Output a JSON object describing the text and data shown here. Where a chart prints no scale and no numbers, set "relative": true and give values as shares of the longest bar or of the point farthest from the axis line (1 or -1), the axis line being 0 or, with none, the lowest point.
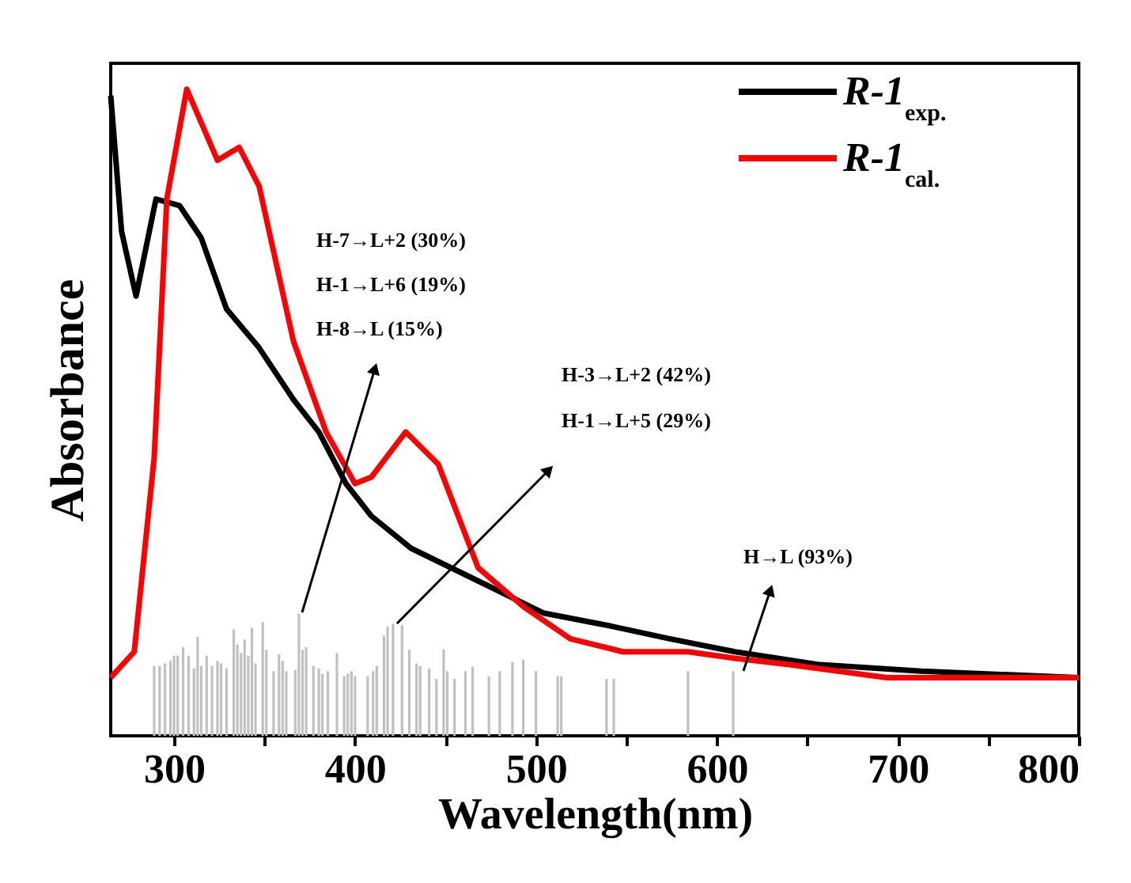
{
  "chart_data": {
    "type": "line",
    "relative": true,
    "xlabel": "Wavelength(nm)",
    "ylabel": "Absorbance",
    "xlim": [
      265,
      800
    ],
    "xticks": [
      300,
      {
        "value": 350,
        "label": null
      },
      400,
      {
        "value": 450,
        "label": null
      },
      500,
      {
        "value": 550,
        "label": null
      },
      600,
      {
        "value": 650,
        "label": null
      },
      700,
      {
        "value": 750,
        "label": null
      },
      800
    ],
    "tick_labels": "x",
    "grid": false,
    "legend": "top right",
    "marker": "none",
    "line_style": "solid",
    "series": [
      {
        "name": "R-1$_{exp.}$",
        "color": "#000000",
        "x": [
          265,
          271,
          279,
          290,
          303,
          315,
          329,
          347,
          366,
          380,
          395,
          409,
          431,
          453,
          475,
          504,
          541,
          574,
          610,
          657,
          713,
          800
        ],
        "values": [
          0.99,
          0.78,
          0.68,
          0.83,
          0.82,
          0.77,
          0.66,
          0.6,
          0.52,
          0.47,
          0.39,
          0.34,
          0.29,
          0.26,
          0.23,
          0.19,
          0.17,
          0.15,
          0.13,
          0.11,
          0.1,
          0.09
        ]
      },
      {
        "name": "R-1$_{cal.}$",
        "color": "#ff0000",
        "x": [
          265,
          278,
          289,
          296,
          307,
          324,
          336,
          347,
          366,
          384,
          400,
          409,
          428,
          446,
          468,
          493,
          519,
          548,
          584,
          610,
          640,
          694,
          800
        ],
        "values": [
          0.09,
          0.13,
          0.43,
          0.83,
          1.0,
          0.89,
          0.91,
          0.85,
          0.61,
          0.47,
          0.39,
          0.4,
          0.47,
          0.42,
          0.26,
          0.2,
          0.15,
          0.13,
          0.13,
          0.12,
          0.11,
          0.09,
          0.09
        ]
      },
      {
        "color": "#c0c0c0",
        "type": "bar",
        "x": [
          289,
          292,
          295,
          298,
          300,
          302,
          305,
          308,
          311,
          313,
          315,
          318,
          321,
          324,
          326,
          329,
          333,
          335,
          337,
          339,
          341,
          343,
          345,
          349,
          351,
          355,
          358,
          360,
          362,
          367,
          369,
          371,
          373,
          377,
          380,
          382,
          385,
          390,
          394,
          396,
          398,
          400,
          407,
          410,
          412,
          416,
          418,
          421,
          426,
          430,
          434,
          436,
          441,
          445,
          449,
          451,
          455,
          461,
          465,
          474,
          480,
          487,
          493,
          500,
          512,
          514,
          539,
          543,
          584,
          609
        ],
        "values": [
          0.108,
          0.108,
          0.112,
          0.116,
          0.124,
          0.124,
          0.137,
          0.124,
          0.104,
          0.153,
          0.108,
          0.124,
          0.108,
          0.116,
          0.112,
          0.104,
          0.165,
          0.141,
          0.128,
          0.149,
          0.124,
          0.167,
          0.112,
          0.176,
          0.133,
          0.1,
          0.126,
          0.116,
          0.1,
          0.102,
          0.189,
          0.133,
          0.137,
          0.108,
          0.104,
          0.096,
          0.1,
          0.128,
          0.092,
          0.096,
          0.1,
          0.092,
          0.092,
          0.1,
          0.108,
          0.155,
          0.169,
          0.173,
          0.171,
          0.133,
          0.112,
          0.108,
          0.104,
          0.088,
          0.134,
          0.1,
          0.088,
          0.1,
          0.107,
          0.092,
          0.1,
          0.114,
          0.118,
          0.1,
          0.092,
          0.092,
          0.088,
          0.088,
          0.1,
          0.1
        ]
      }
    ],
    "annotations": [
      "H-7→L+2 (30%)",
      "H-1→L+6 (19%)",
      "H-8→L (15%)",
      "H-3→L+2 (42%)",
      "H-1→L+5 (29%)",
      "H→L (93%)"
    ]
  }
}
